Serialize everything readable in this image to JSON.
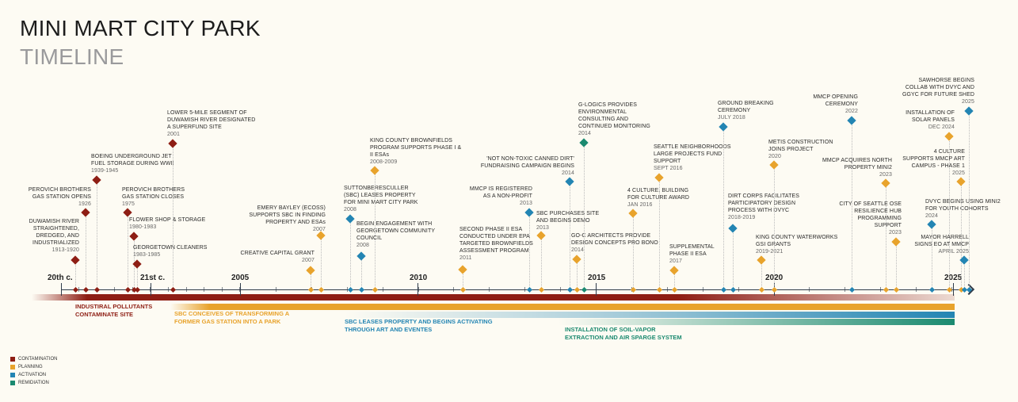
{
  "header": {
    "title": "MINI MART CITY PARK",
    "subtitle": "TIMELINE"
  },
  "colors": {
    "contamination": "#8e1e14",
    "planning": "#e8a32c",
    "activation": "#2385b3",
    "remediation": "#1b8a70",
    "axis": "#2f3b4a"
  },
  "axis": {
    "labels": [
      "20th c.",
      "21st c.",
      "2005",
      "2010",
      "2015",
      "2020",
      "2025"
    ]
  },
  "events": [
    {
      "lines": [
        "DUWAMISH RIVER",
        "STRAIGHTENED,",
        "DREDGED, AND",
        "INDUSTRIALIZED"
      ],
      "date": "1913-1920",
      "category": "contamination"
    },
    {
      "lines": [
        "PEROVICH BROTHERS",
        "GAS STATION OPENS"
      ],
      "date": "1926",
      "category": "contamination"
    },
    {
      "lines": [
        "BOEING UNDERGROUND JET",
        "FUEL STORAGE DURING WWII"
      ],
      "date": "1939-1945",
      "category": "contamination"
    },
    {
      "lines": [
        "PEROVICH BROTHERS",
        "GAS STATION CLOSES"
      ],
      "date": "1975",
      "category": "contamination"
    },
    {
      "lines": [
        "FLOWER SHOP & STORAGE"
      ],
      "date": "1980-1983",
      "category": "contamination"
    },
    {
      "lines": [
        "GEORGETOWN CLEANERS"
      ],
      "date": "1983-1985",
      "category": "contamination"
    },
    {
      "lines": [
        "LOWER 5-MILE SEGMENT OF",
        "DUWAMISH RIVER DESIGNATED",
        "A SUPERFUND SITE"
      ],
      "date": "2001",
      "category": "contamination"
    },
    {
      "lines": [
        "CREATIVE CAPITAL GRANT"
      ],
      "date": "2007",
      "category": "planning"
    },
    {
      "lines": [
        "EMERY BAYLEY (ECOSS)",
        "SUPPORTS SBC IN FINDING",
        "PROPERTY AND ESAs"
      ],
      "date": "2007",
      "category": "planning"
    },
    {
      "lines": [
        "SUTTONBERESCULLER",
        "(SBC) LEASES PROPERTY",
        "FOR MINI MART CITY PARK"
      ],
      "date": "2008",
      "category": "activation"
    },
    {
      "lines": [
        "BEGIN ENGAGEMENT WITH",
        "GEORGETOWN COMMUNITY",
        "COUNCIL"
      ],
      "date": "2008",
      "category": "activation"
    },
    {
      "lines": [
        "KING COUNTY BROWNFIELDS",
        "PROGRAM SUPPORTS PHASE I &",
        "II ESAs"
      ],
      "date": "2008-2009",
      "category": "planning"
    },
    {
      "lines": [
        "SECOND PHASE II ESA",
        "CONDUCTED UNDER EPA",
        "TARGETED BROWNFIELDS",
        "ASSESSMENT PROGRAM"
      ],
      "date": "2011",
      "category": "planning"
    },
    {
      "lines": [
        "MMCP IS REGISTERED",
        "AS A NON-PROFIT"
      ],
      "date": "2013",
      "category": "activation"
    },
    {
      "lines": [
        "SBC PURCHASES SITE",
        "AND BEGINS DEMO"
      ],
      "date": "2013",
      "category": "planning"
    },
    {
      "lines": [
        "'NOT NON-TOXIC CANNED DIRT'",
        "FUNDRAISING CAMPAIGN BEGINS"
      ],
      "date": "2014",
      "category": "activation"
    },
    {
      "lines": [
        "GO-C ARCHITECTS PROVIDE",
        "DESIGN CONCEPTS PRO BONO"
      ],
      "date": "2014",
      "category": "planning"
    },
    {
      "lines": [
        "G-LOGICS PROVIDES",
        "ENVIRONMENTAL",
        "CONSULTING AND",
        "CONTINUED MONITORING"
      ],
      "date": "2014",
      "category": "remediation"
    },
    {
      "lines": [
        "4 CULTURE: BUILDING",
        "FOR CULTURE AWARD"
      ],
      "date": "JAN 2016",
      "category": "planning"
    },
    {
      "lines": [
        "SEATTLE NEIGHBORHOODS",
        "LARGE PROJECTS FUND",
        "SUPPORT"
      ],
      "date": "SEPT 2016",
      "category": "planning"
    },
    {
      "lines": [
        "SUPPLEMENTAL",
        "PHASE II ESA"
      ],
      "date": "2017",
      "category": "planning"
    },
    {
      "lines": [
        "GROUND BREAKING",
        "CEREMONY"
      ],
      "date": "JULY 2018",
      "category": "activation"
    },
    {
      "lines": [
        "DIRT CORPS FACILITATES",
        "PARTICIPATORY DESIGN",
        "PROCESS WITH DVYC"
      ],
      "date": "2018-2019",
      "category": "activation"
    },
    {
      "lines": [
        "KING COUNTY WATERWORKS",
        "GSI GRANTS"
      ],
      "date": "2019-2021",
      "category": "planning"
    },
    {
      "lines": [
        "METIS CONSTRUCTION",
        "JOINS PROJECT"
      ],
      "date": "2020",
      "category": "planning"
    },
    {
      "lines": [
        "MMCP OPENING",
        "CEREMONY"
      ],
      "date": "2022",
      "category": "activation"
    },
    {
      "lines": [
        "MMCP ACQUIRES NORTH",
        "PROPERTY MINI2"
      ],
      "date": "2023",
      "category": "planning"
    },
    {
      "lines": [
        "CITY OF SEATTLE OSE",
        "RESILIENCE HUB",
        "PROGRAMMING",
        "SUPPORT"
      ],
      "date": "2023",
      "category": "planning"
    },
    {
      "lines": [
        "DVYC BEGINS USING MINI2",
        "FOR YOUTH COHORTS"
      ],
      "date": "2024",
      "category": "activation"
    },
    {
      "lines": [
        "INSTALLATION OF",
        "SOLAR PANELS"
      ],
      "date": "DEC 2024",
      "category": "planning"
    },
    {
      "lines": [
        "4 CULTURE",
        "SUPPORTS MMCP ART",
        "CAMPUS - PHASE 1"
      ],
      "date": "2025",
      "category": "planning"
    },
    {
      "lines": [
        "MAYOR HARRELL",
        "SIGNS EO AT MMCP"
      ],
      "date": "APRIL 2025",
      "category": "activation"
    },
    {
      "lines": [
        "SAWHORSE BEGINS",
        "COLLAB WITH DVYC AND",
        "GGYC FOR FUTURE SHED"
      ],
      "date": "2025",
      "category": "activation"
    }
  ],
  "phases": [
    {
      "lines": [
        "INDUSTIRAL POLLUTANTS",
        "CONTAMINATE SITE"
      ],
      "category": "contamination"
    },
    {
      "lines": [
        "SBC CONCEIVES OF TRANSFORMING A",
        "FORMER GAS STATION INTO A PARK"
      ],
      "category": "planning"
    },
    {
      "lines": [
        "SBC LEASES PROPERTY AND BEGINS ACTIVATING",
        "THROUGH ART AND EVENTES"
      ],
      "category": "activation"
    },
    {
      "lines": [
        "INSTALLATION OF SOIL-VAPOR",
        "EXTRACTION AND AIR SPARGE SYSTEM"
      ],
      "category": "remediation"
    }
  ],
  "legend": [
    {
      "label": "CONTAMINATION",
      "category": "contamination"
    },
    {
      "label": "PLANNING",
      "category": "planning"
    },
    {
      "label": "ACTIVATION",
      "category": "activation"
    },
    {
      "label": "REMIDIATION",
      "category": "remediation"
    }
  ]
}
